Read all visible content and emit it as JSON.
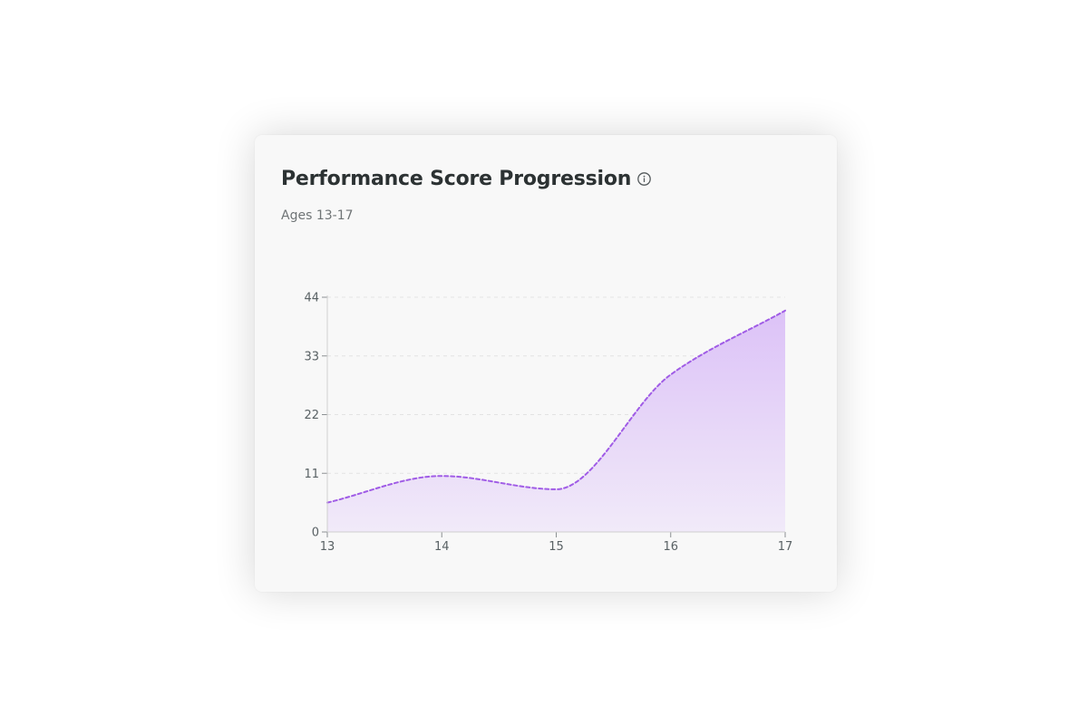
{
  "card": {
    "title": "Performance Score Progression",
    "subtitle": "Ages 13-17"
  },
  "icons": {
    "info": "info-circle-icon"
  },
  "colors": {
    "line": "#a05ce6",
    "area_top": "#dcc2f7",
    "area_bottom": "#f1eaf9",
    "grid": "#e3e3e3",
    "axis": "#cfcfcf"
  },
  "chart_data": {
    "type": "area",
    "title": "Performance Score Progression",
    "subtitle": "Ages 13-17",
    "xlabel": "",
    "ylabel": "",
    "x": [
      13,
      14,
      15,
      16,
      17
    ],
    "x_ticks": [
      "13",
      "14",
      "15",
      "16",
      "17"
    ],
    "y_ticks": [
      "0",
      "11",
      "22",
      "33",
      "44"
    ],
    "ylim": [
      0,
      44
    ],
    "xlim": [
      13,
      17
    ],
    "series": [
      {
        "values": [
          5.5,
          10.5,
          8,
          29.5,
          41.5
        ],
        "line_style": "dashed",
        "curve": "smooth"
      }
    ],
    "grid": "horizontal dashed",
    "legend": "none"
  }
}
